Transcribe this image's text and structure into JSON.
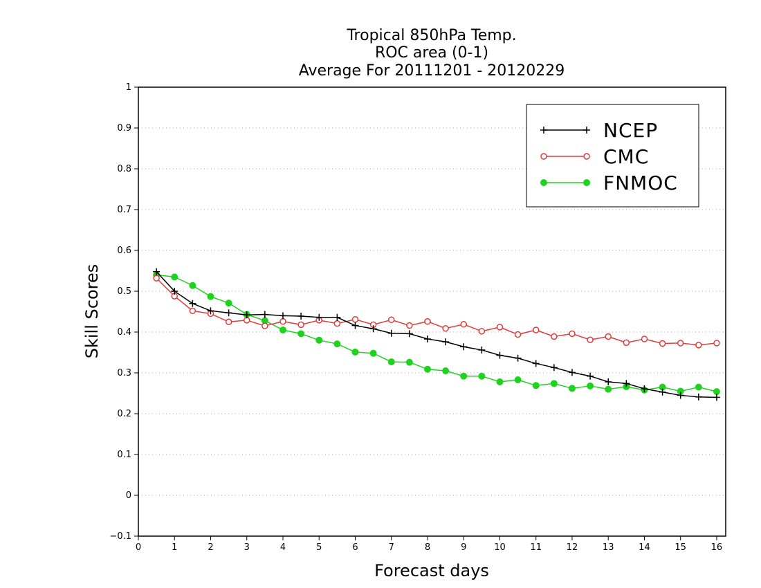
{
  "chart_data": {
    "type": "line",
    "title_lines": [
      "Tropical 850hPa Temp.",
      "ROC area (0-1)",
      "Average For 20111201 - 20120229"
    ],
    "xlabel": "Forecast days",
    "ylabel": "Skill Scores",
    "xlim": [
      0,
      16.25
    ],
    "ylim": [
      -0.1,
      1
    ],
    "xticks": [
      0,
      1,
      2,
      3,
      4,
      5,
      6,
      7,
      8,
      9,
      10,
      11,
      12,
      13,
      14,
      15,
      16
    ],
    "yticks": [
      -0.1,
      0,
      0.1,
      0.2,
      0.3,
      0.4,
      0.5,
      0.6,
      0.7,
      0.8,
      0.9,
      1
    ],
    "ytick_labels": [
      "−0.1",
      "0",
      "0.1",
      "0.2",
      "0.3",
      "0.4",
      "0.5",
      "0.6",
      "0.7",
      "0.8",
      "0.9",
      "1"
    ],
    "grid": "horizontal dotted",
    "legend_position": "top-right",
    "x": [
      0.5,
      1,
      1.5,
      2,
      2.5,
      3,
      3.5,
      4,
      4.5,
      5,
      5.5,
      6,
      6.5,
      7,
      7.5,
      8,
      8.5,
      9,
      9.5,
      10,
      10.5,
      11,
      11.5,
      12,
      12.5,
      13,
      13.5,
      14,
      14.5,
      15,
      15.5,
      16
    ],
    "series": [
      {
        "name": "NCEP",
        "color": "#000000",
        "marker": "plus",
        "values": [
          0.548,
          0.5,
          0.47,
          0.452,
          0.447,
          0.442,
          0.443,
          0.44,
          0.439,
          0.436,
          0.436,
          0.416,
          0.408,
          0.397,
          0.396,
          0.383,
          0.376,
          0.364,
          0.356,
          0.343,
          0.336,
          0.323,
          0.313,
          0.301,
          0.292,
          0.278,
          0.274,
          0.261,
          0.253,
          0.245,
          0.241,
          0.24
        ]
      },
      {
        "name": "CMC",
        "color": "#e03a3a",
        "marker": "open-circle",
        "values": [
          0.532,
          0.488,
          0.452,
          0.445,
          0.425,
          0.429,
          0.415,
          0.426,
          0.418,
          0.429,
          0.421,
          0.431,
          0.418,
          0.43,
          0.416,
          0.426,
          0.409,
          0.419,
          0.402,
          0.412,
          0.394,
          0.405,
          0.389,
          0.396,
          0.381,
          0.389,
          0.374,
          0.383,
          0.372,
          0.373,
          0.368,
          0.373
        ]
      },
      {
        "name": "FNMOC",
        "color": "#1ed21e",
        "marker": "filled-circle",
        "values": [
          0.54,
          0.535,
          0.514,
          0.487,
          0.471,
          0.443,
          0.428,
          0.405,
          0.396,
          0.38,
          0.371,
          0.351,
          0.348,
          0.327,
          0.326,
          0.309,
          0.305,
          0.292,
          0.292,
          0.278,
          0.283,
          0.269,
          0.274,
          0.262,
          0.268,
          0.26,
          0.266,
          0.258,
          0.265,
          0.255,
          0.265,
          0.254
        ]
      }
    ]
  }
}
